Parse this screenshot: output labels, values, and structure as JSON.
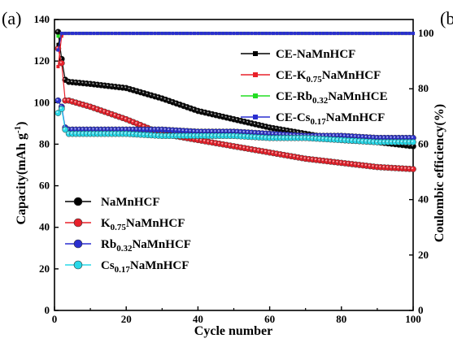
{
  "panel_label": "(a)",
  "next_panel_label": "(b",
  "colors": {
    "NaMnHCF": "#000000",
    "K": "#e8202a",
    "Rb": "#2a2fd0",
    "Cs": "#28d8e8",
    "CE-Rb": "#22dd22"
  },
  "chart_data": {
    "type": "scatter",
    "xlabel": "Cycle number",
    "ylabel": "Capacity(mAh g⁻¹)",
    "ylabel_parts": [
      "Capacity(mAh g",
      "-1",
      ")"
    ],
    "y2label": "Coulombic efficiency(%)",
    "xlim": [
      0,
      100
    ],
    "ylim": [
      0,
      140
    ],
    "y2lim": [
      0,
      105
    ],
    "x_ticks": [
      "0",
      "20",
      "40",
      "60",
      "80",
      "100"
    ],
    "y_ticks": [
      "0",
      "20",
      "40",
      "60",
      "80",
      "100",
      "120",
      "140"
    ],
    "y2_ticks": [
      "0",
      "20",
      "40",
      "60",
      "80",
      "100"
    ],
    "capacity_series": [
      {
        "name": "NaMnHCF",
        "label_main": "NaMnHCF",
        "label_sub": "",
        "label_tail": "",
        "color": "#000000",
        "points": [
          [
            1,
            134
          ],
          [
            2,
            121
          ],
          [
            3,
            111
          ],
          [
            4,
            110
          ],
          [
            10,
            109
          ],
          [
            20,
            107
          ],
          [
            30,
            102
          ],
          [
            40,
            96
          ],
          [
            50,
            92
          ],
          [
            60,
            88
          ],
          [
            70,
            85
          ],
          [
            80,
            82
          ],
          [
            90,
            81
          ],
          [
            100,
            79
          ]
        ]
      },
      {
        "name": "K0.75NaMnHCF",
        "label_main": "K",
        "label_sub": "0.75",
        "label_tail": "NaMnHCF",
        "color": "#e8202a",
        "points": [
          [
            1,
            126
          ],
          [
            2,
            119
          ],
          [
            3,
            101
          ],
          [
            4,
            101
          ],
          [
            10,
            98
          ],
          [
            20,
            92
          ],
          [
            30,
            85
          ],
          [
            40,
            82
          ],
          [
            50,
            79
          ],
          [
            60,
            76
          ],
          [
            70,
            73
          ],
          [
            80,
            71
          ],
          [
            90,
            69
          ],
          [
            100,
            68
          ]
        ]
      },
      {
        "name": "Rb0.32NaMnHCF",
        "label_main": "Rb",
        "label_sub": "0.32",
        "label_tail": "NaMnHCF",
        "color": "#2a2fd0",
        "points": [
          [
            1,
            101
          ],
          [
            2,
            98
          ],
          [
            3,
            88
          ],
          [
            4,
            87
          ],
          [
            10,
            87
          ],
          [
            20,
            87
          ],
          [
            30,
            87
          ],
          [
            40,
            86
          ],
          [
            50,
            86
          ],
          [
            60,
            85
          ],
          [
            70,
            84
          ],
          [
            80,
            84
          ],
          [
            90,
            83
          ],
          [
            100,
            83
          ]
        ]
      },
      {
        "name": "Cs0.17NaMnHCF",
        "label_main": "Cs",
        "label_sub": "0.17",
        "label_tail": "NaMnHCF",
        "color": "#28d8e8",
        "points": [
          [
            1,
            95
          ],
          [
            2,
            97
          ],
          [
            3,
            87
          ],
          [
            4,
            85
          ],
          [
            10,
            85
          ],
          [
            20,
            85
          ],
          [
            30,
            84
          ],
          [
            40,
            84
          ],
          [
            50,
            84
          ],
          [
            60,
            83
          ],
          [
            70,
            83
          ],
          [
            80,
            82
          ],
          [
            90,
            81
          ],
          [
            100,
            81
          ]
        ]
      }
    ],
    "ce_series": [
      {
        "name": "CE-NaMnHCF",
        "label_main": "CE-NaMnHCF",
        "label_sub": "",
        "label_tail": "",
        "color": "#000000",
        "points": [
          [
            1,
            96
          ],
          [
            2,
            100
          ],
          [
            3,
            100
          ],
          [
            4,
            100
          ],
          [
            10,
            100
          ],
          [
            50,
            100
          ],
          [
            100,
            100
          ]
        ]
      },
      {
        "name": "CE-K0.75NaMnHCF",
        "label_main": "CE-K",
        "label_sub": "0.75",
        "label_tail": "NaMnHCF",
        "color": "#e8202a",
        "points": [
          [
            1,
            88
          ],
          [
            2,
            99
          ],
          [
            3,
            100
          ],
          [
            4,
            100
          ],
          [
            10,
            100
          ],
          [
            50,
            100
          ],
          [
            100,
            100
          ]
        ]
      },
      {
        "name": "CE-Rb0.32NaMnHCF",
        "label_main": "CE-Rb",
        "label_sub": "0.32",
        "label_tail": "NaMnHCE",
        "color": "#22dd22",
        "points": [
          [
            1,
            99
          ],
          [
            2,
            100
          ],
          [
            3,
            100
          ],
          [
            4,
            100
          ],
          [
            10,
            100
          ],
          [
            50,
            100
          ],
          [
            100,
            100
          ]
        ]
      },
      {
        "name": "CE-Cs0.17NaMnHCF",
        "label_main": "CE-Cs",
        "label_sub": "0.17",
        "label_tail": "NaMnHCF",
        "color": "#2a2fd0",
        "points": [
          [
            1,
            94
          ],
          [
            2,
            100
          ],
          [
            3,
            100
          ],
          [
            4,
            100
          ],
          [
            10,
            100
          ],
          [
            50,
            100
          ],
          [
            100,
            100
          ]
        ]
      }
    ],
    "legend_capacity_position": "lower-left",
    "legend_ce_position": "upper-right",
    "grid": false
  }
}
